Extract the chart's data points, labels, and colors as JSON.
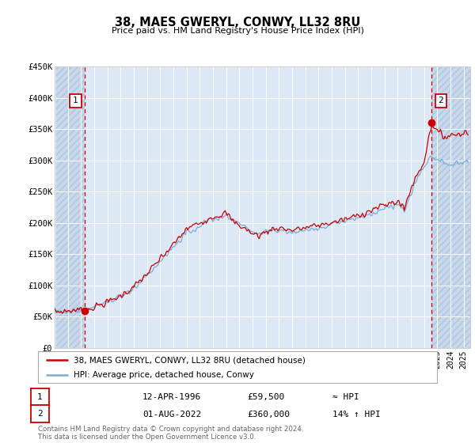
{
  "title": "38, MAES GWERYL, CONWY, LL32 8RU",
  "subtitle": "Price paid vs. HM Land Registry's House Price Index (HPI)",
  "ylim": [
    0,
    450000
  ],
  "yticks": [
    0,
    50000,
    100000,
    150000,
    200000,
    250000,
    300000,
    350000,
    400000,
    450000
  ],
  "ytick_labels": [
    "£0",
    "£50K",
    "£100K",
    "£150K",
    "£200K",
    "£250K",
    "£300K",
    "£350K",
    "£400K",
    "£450K"
  ],
  "xlim_start": 1994.1,
  "xlim_end": 2025.5,
  "background_color": "#dce8f5",
  "hatch_color": "#c8d8ec",
  "grid_color": "#ffffff",
  "line_color_red": "#cc0000",
  "line_color_blue": "#7aadd4",
  "point1_x": 1996.28,
  "point1_y": 59500,
  "point2_x": 2022.58,
  "point2_y": 360000,
  "legend_line1": "38, MAES GWERYL, CONWY, LL32 8RU (detached house)",
  "legend_line2": "HPI: Average price, detached house, Conwy",
  "table_row1": [
    "1",
    "12-APR-1996",
    "£59,500",
    "≈ HPI"
  ],
  "table_row2": [
    "2",
    "01-AUG-2022",
    "£360,000",
    "14% ↑ HPI"
  ],
  "footer": "Contains HM Land Registry data © Crown copyright and database right 2024.\nThis data is licensed under the Open Government Licence v3.0."
}
